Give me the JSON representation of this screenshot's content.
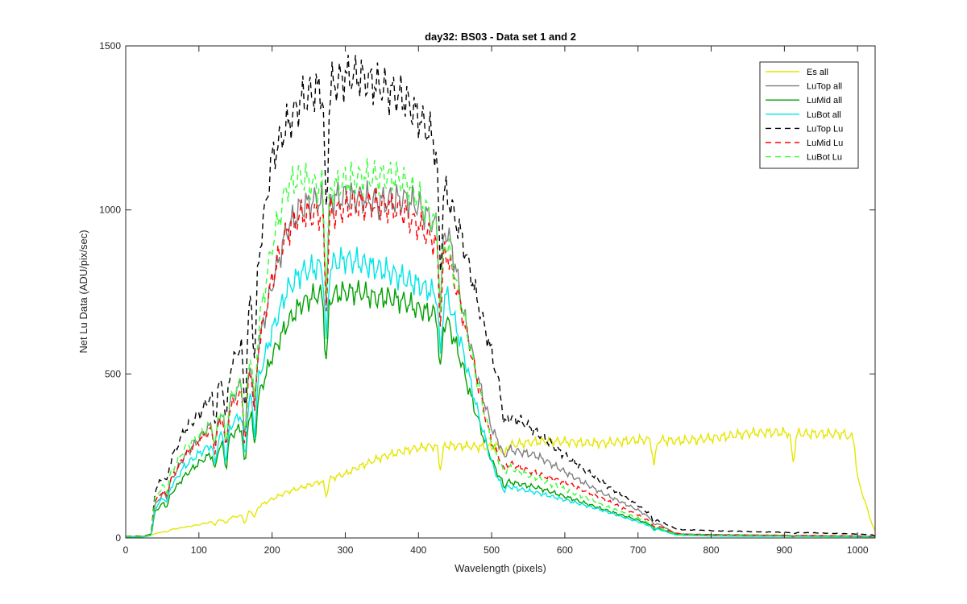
{
  "chart_data": {
    "type": "line",
    "title": "day32: BS03 - Data set 1 and 2",
    "xlabel": "Wavelength (pixels)",
    "ylabel": "Net Lu Data (ADU/pix/sec)",
    "xlim": [
      0,
      1024
    ],
    "ylim": [
      0,
      1500
    ],
    "x_ticks": [
      0,
      100,
      200,
      300,
      400,
      500,
      600,
      700,
      800,
      900,
      1000
    ],
    "y_ticks": [
      0,
      500,
      1000,
      1500
    ],
    "grid": false,
    "legend_position": "top-right",
    "dips": [
      {
        "x": 56,
        "d": 0.2,
        "w": 3
      },
      {
        "x": 122,
        "d": 0.22,
        "w": 3
      },
      {
        "x": 137,
        "d": 0.28,
        "w": 3
      },
      {
        "x": 163,
        "d": 0.38,
        "w": 3
      },
      {
        "x": 176,
        "d": 0.3,
        "w": 3
      },
      {
        "x": 274,
        "d": 0.28,
        "w": 3
      },
      {
        "x": 430,
        "d": 0.25,
        "w": 3
      },
      {
        "x": 517,
        "d": 0.12,
        "w": 3
      },
      {
        "x": 722,
        "d": 0.26,
        "w": 3
      },
      {
        "x": 912,
        "d": 0.28,
        "w": 3
      }
    ],
    "series": [
      {
        "name": "Es  all",
        "color": "#e6e600",
        "dash": "",
        "x": [
          0,
          25,
          35,
          60,
          100,
          140,
          160,
          180,
          200,
          220,
          260,
          280,
          300,
          320,
          350,
          380,
          410,
          440,
          470,
          500,
          520,
          560,
          600,
          650,
          700,
          750,
          800,
          850,
          900,
          950,
          980,
          995,
          1000,
          1010,
          1020,
          1024
        ],
        "y": [
          2,
          3,
          10,
          25,
          40,
          60,
          70,
          95,
          120,
          140,
          165,
          180,
          195,
          220,
          250,
          265,
          275,
          280,
          282,
          280,
          282,
          290,
          293,
          293,
          296,
          295,
          308,
          316,
          320,
          322,
          318,
          300,
          180,
          110,
          40,
          20
        ]
      },
      {
        "name": "LuTop  all",
        "color": "#808080",
        "dash": "",
        "x": [
          0,
          25,
          35,
          40,
          60,
          80,
          100,
          120,
          140,
          160,
          180,
          200,
          220,
          240,
          260,
          280,
          300,
          320,
          340,
          360,
          380,
          400,
          420,
          440,
          450,
          460,
          470,
          480,
          490,
          500,
          510,
          520,
          560,
          600,
          650,
          700,
          730,
          750,
          760,
          800,
          850,
          900,
          950,
          1000,
          1020,
          1024
        ],
        "y": [
          4,
          5,
          10,
          100,
          170,
          250,
          300,
          350,
          400,
          480,
          580,
          780,
          950,
          1010,
          1020,
          1020,
          1030,
          1040,
          1035,
          1040,
          1040,
          1010,
          950,
          920,
          830,
          700,
          600,
          500,
          420,
          340,
          290,
          275,
          250,
          200,
          140,
          85,
          40,
          15,
          12,
          10,
          9,
          8,
          7,
          6,
          5,
          3
        ]
      },
      {
        "name": "LuMid  all",
        "color": "#00a000",
        "dash": "",
        "x": [
          0,
          25,
          35,
          40,
          60,
          80,
          100,
          120,
          140,
          160,
          180,
          200,
          220,
          240,
          260,
          280,
          300,
          320,
          340,
          360,
          380,
          400,
          420,
          440,
          450,
          460,
          470,
          480,
          490,
          500,
          510,
          520,
          560,
          600,
          650,
          700,
          730,
          750,
          760,
          800,
          850,
          900,
          950,
          1000,
          1020,
          1024
        ],
        "y": [
          3,
          4,
          8,
          80,
          130,
          190,
          230,
          260,
          300,
          340,
          420,
          560,
          660,
          720,
          740,
          730,
          740,
          745,
          735,
          740,
          730,
          700,
          680,
          650,
          590,
          520,
          440,
          370,
          300,
          240,
          190,
          175,
          155,
          125,
          90,
          55,
          28,
          12,
          10,
          8,
          7,
          6,
          5,
          5,
          4,
          3
        ]
      },
      {
        "name": "LuBot  all",
        "color": "#00e6e6",
        "dash": "",
        "x": [
          0,
          25,
          35,
          40,
          60,
          80,
          100,
          120,
          140,
          160,
          180,
          200,
          220,
          240,
          260,
          280,
          300,
          320,
          340,
          360,
          380,
          400,
          420,
          440,
          450,
          460,
          470,
          480,
          490,
          500,
          510,
          520,
          560,
          600,
          650,
          700,
          730,
          750,
          760,
          800,
          850,
          900,
          950,
          1000,
          1020,
          1024
        ],
        "y": [
          3,
          4,
          8,
          90,
          150,
          220,
          260,
          290,
          330,
          380,
          470,
          630,
          760,
          820,
          830,
          830,
          840,
          830,
          820,
          815,
          800,
          780,
          750,
          730,
          650,
          570,
          480,
          390,
          310,
          230,
          175,
          160,
          140,
          115,
          85,
          50,
          25,
          10,
          8,
          6,
          5,
          5,
          4,
          4,
          3,
          2
        ]
      },
      {
        "name": "LuTop  Lu",
        "color": "#000000",
        "dash": "7,5",
        "x": [
          0,
          25,
          35,
          40,
          60,
          80,
          100,
          120,
          140,
          160,
          180,
          200,
          220,
          240,
          260,
          280,
          300,
          320,
          340,
          360,
          380,
          400,
          420,
          430,
          440,
          460,
          480,
          500,
          520,
          540,
          560,
          600,
          650,
          700,
          730,
          750,
          760,
          800,
          850,
          900,
          950,
          1000,
          1020,
          1024
        ],
        "y": [
          5,
          6,
          12,
          140,
          230,
          330,
          380,
          450,
          500,
          600,
          820,
          1150,
          1260,
          1350,
          1380,
          1380,
          1400,
          1390,
          1370,
          1360,
          1350,
          1300,
          1230,
          1100,
          1040,
          900,
          720,
          560,
          370,
          360,
          330,
          250,
          170,
          100,
          50,
          30,
          25,
          22,
          20,
          17,
          15,
          12,
          10,
          5
        ]
      },
      {
        "name": "LuMid  Lu",
        "color": "#ff0000",
        "dash": "7,5",
        "x": [
          0,
          25,
          35,
          40,
          60,
          80,
          100,
          120,
          140,
          160,
          180,
          200,
          220,
          240,
          260,
          280,
          300,
          320,
          340,
          360,
          380,
          400,
          420,
          440,
          450,
          460,
          470,
          480,
          490,
          500,
          510,
          520,
          560,
          600,
          650,
          700,
          730,
          750,
          760,
          800,
          850,
          900,
          950,
          1000,
          1020,
          1024
        ],
        "y": [
          4,
          5,
          10,
          110,
          170,
          250,
          300,
          340,
          390,
          450,
          560,
          780,
          930,
          990,
          1000,
          1000,
          1010,
          1010,
          1005,
          1000,
          990,
          960,
          920,
          870,
          780,
          680,
          580,
          480,
          380,
          290,
          240,
          230,
          200,
          170,
          120,
          70,
          35,
          15,
          12,
          10,
          9,
          8,
          7,
          6,
          5,
          3
        ]
      },
      {
        "name": "LuBot  Lu",
        "color": "#33ff33",
        "dash": "7,5",
        "x": [
          0,
          25,
          35,
          40,
          60,
          80,
          100,
          120,
          140,
          160,
          180,
          200,
          220,
          240,
          260,
          280,
          300,
          320,
          340,
          360,
          380,
          400,
          420,
          440,
          450,
          460,
          470,
          480,
          490,
          500,
          510,
          520,
          560,
          600,
          650,
          700,
          730,
          750,
          760,
          800,
          850,
          900,
          950,
          1000,
          1020,
          1024
        ],
        "y": [
          4,
          5,
          10,
          120,
          190,
          270,
          310,
          360,
          420,
          490,
          620,
          880,
          1060,
          1100,
          1080,
          1080,
          1100,
          1100,
          1090,
          1090,
          1080,
          1040,
          980,
          900,
          800,
          700,
          590,
          480,
          380,
          290,
          230,
          215,
          185,
          150,
          100,
          60,
          30,
          12,
          10,
          8,
          7,
          6,
          5,
          5,
          4,
          2
        ]
      }
    ]
  }
}
